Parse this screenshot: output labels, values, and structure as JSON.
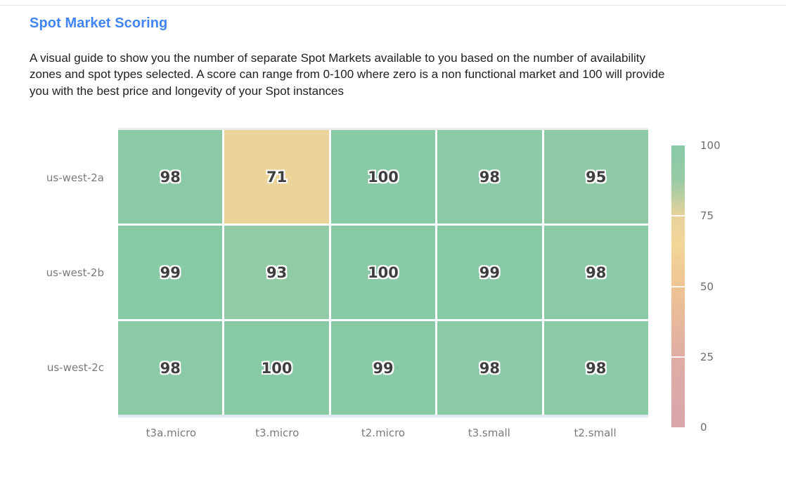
{
  "header": {
    "title": "Spot Market Scoring",
    "description_lines": [
      "A visual guide to show you the number of separate Spot Markets available to you based on the number of availability",
      "zones and spot types selected. A score can range from 0-100 where zero is a non functional market and 100 will provide",
      "you with the best price and longevity of your Spot instances"
    ]
  },
  "chart_data": {
    "type": "heatmap",
    "title": "Spot Market Scoring",
    "rows": [
      "us-west-2a",
      "us-west-2b",
      "us-west-2c"
    ],
    "columns": [
      "t3a.micro",
      "t3.micro",
      "t2.micro",
      "t3.small",
      "t2.small"
    ],
    "values": [
      [
        98,
        71,
        100,
        98,
        95
      ],
      [
        99,
        93,
        100,
        99,
        98
      ],
      [
        98,
        100,
        99,
        98,
        98
      ]
    ],
    "value_range": [
      0,
      100
    ],
    "legend_position": "right",
    "grid": true,
    "colorbar": {
      "ticks": [
        100,
        75,
        50,
        25,
        0
      ],
      "min": 0,
      "max": 100
    },
    "color_scale": [
      [
        0,
        "#d9a6ac"
      ],
      [
        25,
        "#e0aca4"
      ],
      [
        50,
        "#efc493"
      ],
      [
        65,
        "#f2d698"
      ],
      [
        75,
        "#e7d29c"
      ],
      [
        88,
        "#96cba5"
      ],
      [
        100,
        "#88caa6"
      ]
    ]
  },
  "colors": {
    "title_accent": "#4184f3",
    "body_text": "#202124",
    "axis_label": "#7a7a7a",
    "cell_value_text": "#3f3f3f",
    "green_high": "#8ccba9",
    "tan_mid": "#f0d49b",
    "pink_low": "#d9a6ac"
  }
}
